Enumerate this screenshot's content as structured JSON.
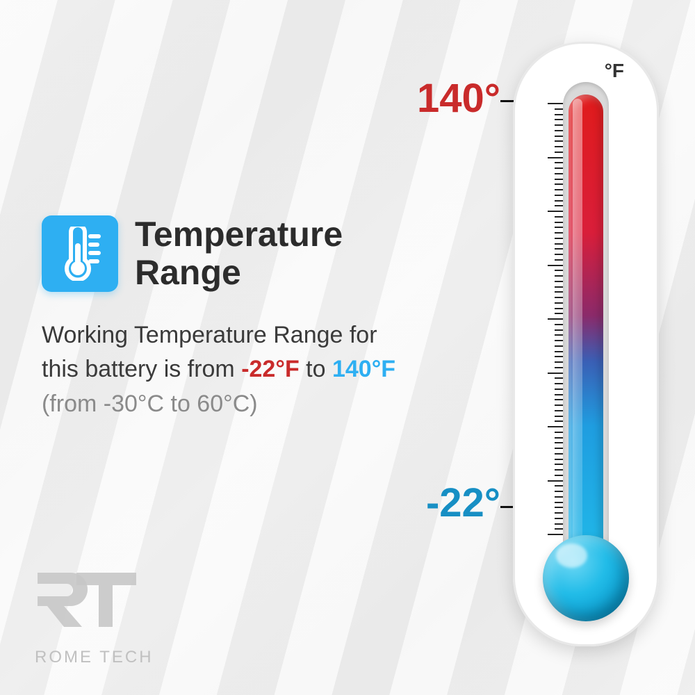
{
  "title": "Temperature\nRange",
  "icon": {
    "name": "thermometer-icon",
    "bg_color": "#2eaff2"
  },
  "description": {
    "prefix": "Working Temperature Range for this battery is from ",
    "cold_f": "-22°F",
    "mid": " to ",
    "hot_f": "140°F",
    "celsius": "(from -30°C to 60°C)"
  },
  "thermometer": {
    "unit": "°F",
    "hot_label": "140°",
    "cold_label": "-22°",
    "hot_color": "#c92b2b",
    "cold_color": "#178fc4",
    "gradient_top": "#e01b1b",
    "gradient_bottom": "#20b8e8",
    "bulb_color": "#22bce8",
    "body_color": "#ffffff",
    "tick_count_major": 8,
    "tick_minor_per_major": 9
  },
  "logo": {
    "mark": "RT",
    "text": "ROME TECH",
    "color": "#c0c0c0"
  },
  "colors": {
    "title_color": "#2c2c2c",
    "body_text": "#3a3a3a",
    "celsius_text": "#8a8a8a",
    "background": "#f3f3f3"
  }
}
